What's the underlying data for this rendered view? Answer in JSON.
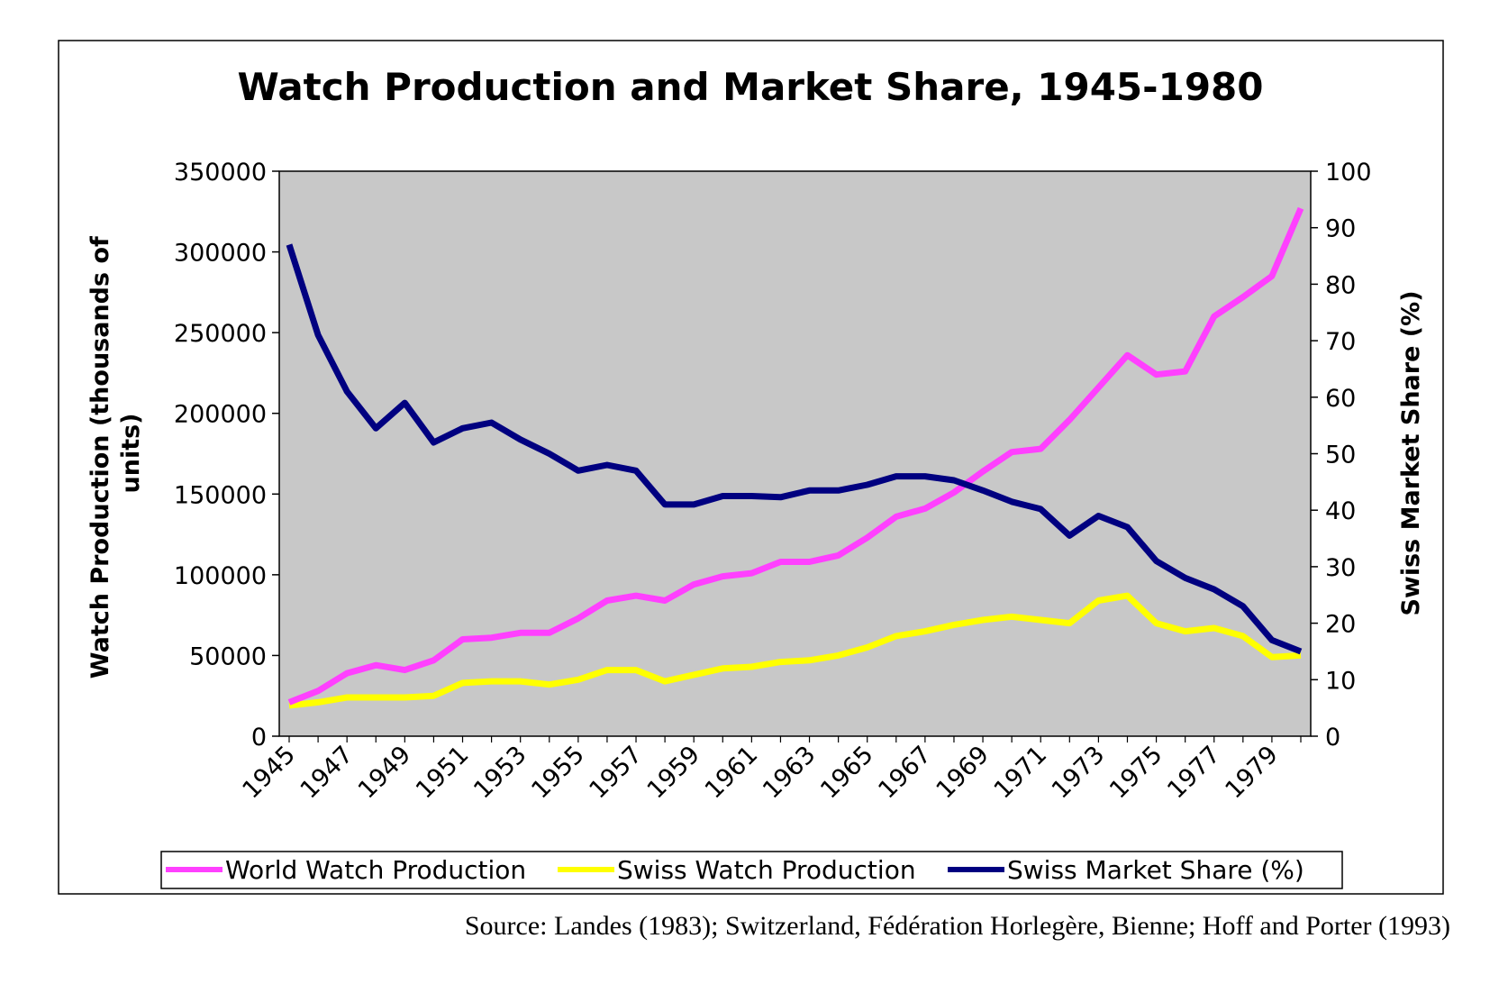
{
  "source_note": "Source: Landes (1983); Switzerland, Fédération Horlegère, Bienne; Hoff and Porter (1993)",
  "colors": {
    "plot_background": "#c8c8c8",
    "world": "#ff40ff",
    "swiss_production": "#ffff00",
    "swiss_share": "#000080"
  },
  "chart_data": {
    "type": "line",
    "title": "Watch Production and Market Share, 1945-1980",
    "ylabel_left": "Watch Production (thousands of units)",
    "ylabel_left_lines": [
      "Watch Production (thousands of",
      "units)"
    ],
    "ylabel_right": "Swiss Market Share (%)",
    "ylim_left": [
      0,
      350000
    ],
    "ylim_right": [
      0,
      100
    ],
    "y_ticks_left": [
      "0",
      "50000",
      "100000",
      "150000",
      "200000",
      "250000",
      "300000",
      "350000"
    ],
    "y_ticks_right": [
      "0",
      "10",
      "20",
      "30",
      "40",
      "50",
      "60",
      "70",
      "80",
      "90",
      "100"
    ],
    "x_tick_labels": [
      "1945",
      "1947",
      "1949",
      "1951",
      "1953",
      "1955",
      "1957",
      "1959",
      "1961",
      "1963",
      "1965",
      "1967",
      "1969",
      "1971",
      "1973",
      "1975",
      "1977",
      "1979"
    ],
    "x": [
      1945,
      1946,
      1947,
      1948,
      1949,
      1950,
      1951,
      1952,
      1953,
      1954,
      1955,
      1956,
      1957,
      1958,
      1959,
      1960,
      1961,
      1962,
      1963,
      1964,
      1965,
      1966,
      1967,
      1968,
      1969,
      1970,
      1971,
      1972,
      1973,
      1974,
      1975,
      1976,
      1977,
      1978,
      1979,
      1980
    ],
    "grid": false,
    "legend_position": "bottom",
    "series": [
      {
        "name": "World Watch Production",
        "axis": "left",
        "values": [
          21000,
          28000,
          39000,
          44000,
          41000,
          47000,
          60000,
          61000,
          64000,
          64000,
          73000,
          84000,
          87000,
          84000,
          94000,
          99000,
          101000,
          108000,
          108000,
          112000,
          123000,
          136000,
          141000,
          151000,
          164000,
          176000,
          178000,
          196000,
          216000,
          236000,
          224000,
          226000,
          260000,
          272000,
          285000,
          327000
        ]
      },
      {
        "name": "Swiss Watch Production",
        "axis": "left",
        "values": [
          19000,
          21000,
          24000,
          24000,
          24000,
          25000,
          33000,
          34000,
          34000,
          32000,
          35000,
          41000,
          41000,
          34000,
          38000,
          42000,
          43000,
          46000,
          47000,
          50000,
          55000,
          62000,
          65000,
          69000,
          72000,
          74000,
          72000,
          70000,
          84000,
          87000,
          70000,
          65000,
          67000,
          62000,
          49000,
          50000
        ]
      },
      {
        "name": "Swiss Market Share (%)",
        "axis": "right",
        "values": [
          87,
          71,
          61,
          54.5,
          59,
          52,
          54.5,
          55.5,
          52.5,
          50,
          47,
          48,
          47,
          41,
          41,
          42.5,
          42.5,
          42.3,
          43.5,
          43.5,
          44.5,
          46,
          46,
          45.3,
          43.5,
          41.5,
          40.2,
          35.5,
          39,
          37,
          31,
          28,
          26,
          23,
          17,
          15
        ]
      }
    ]
  }
}
